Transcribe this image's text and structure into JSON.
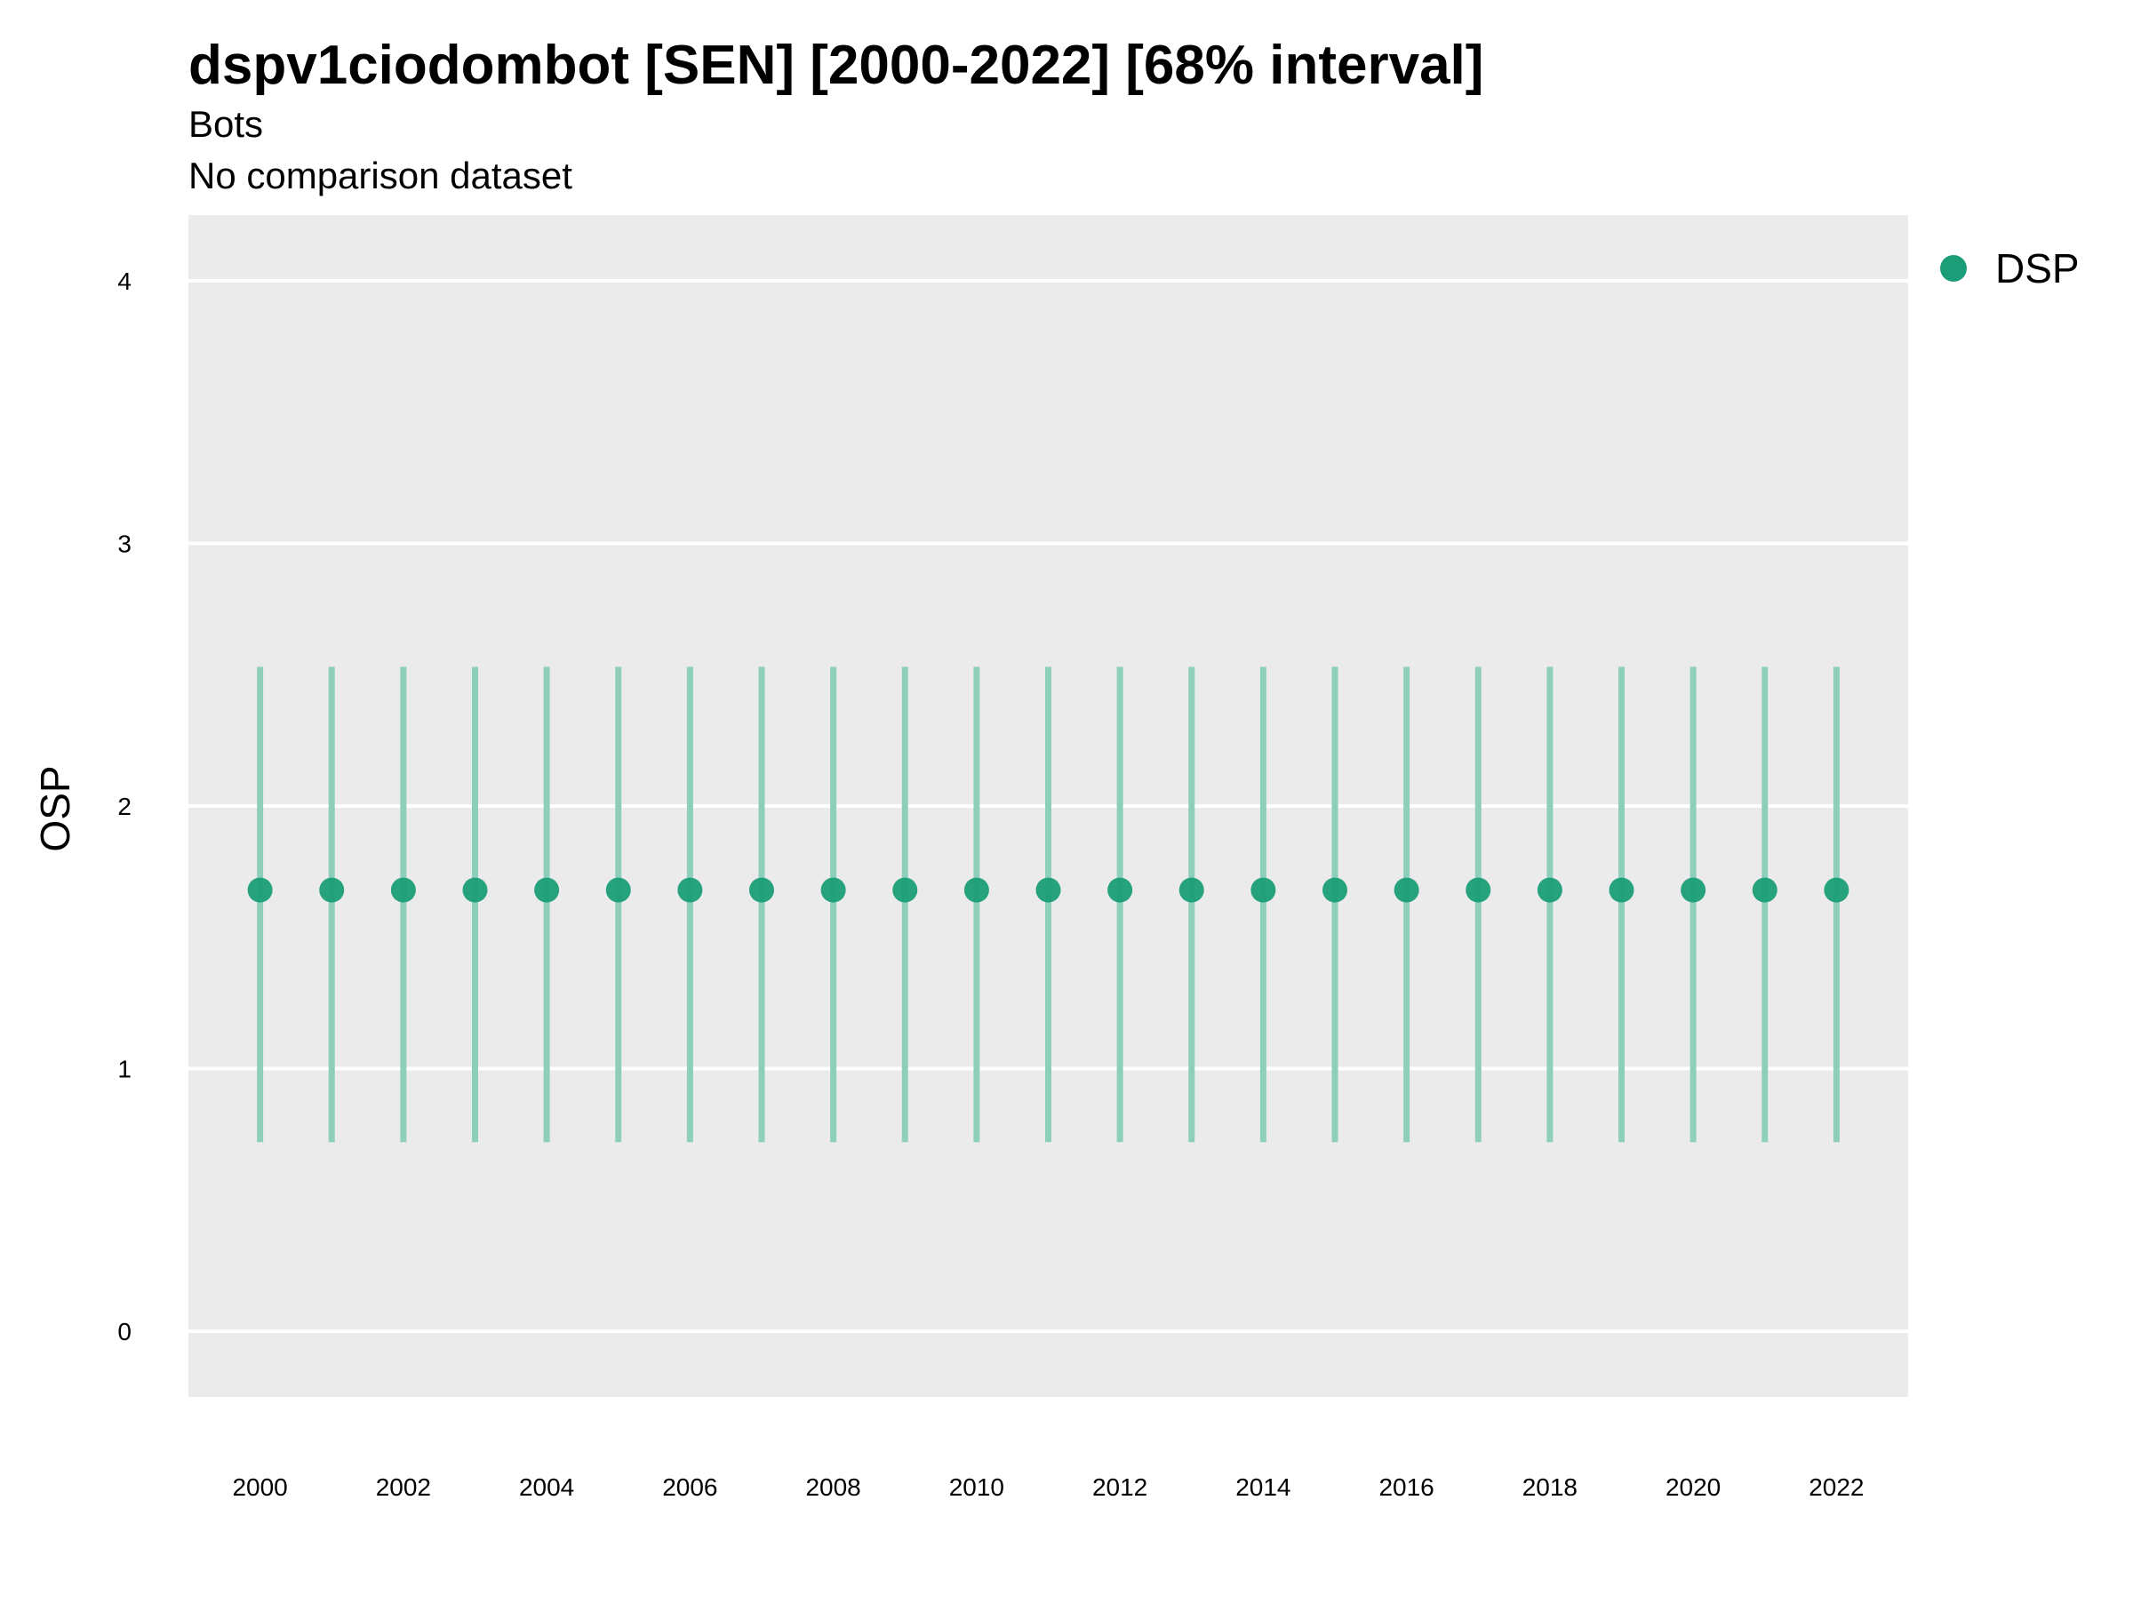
{
  "chart_data": {
    "type": "scatter",
    "title": "dspv1ciodombot [SEN] [2000-2022] [68% interval]",
    "subtitle": "Bots",
    "subtitle2": "No comparison dataset",
    "ylabel": "OSP",
    "xlabel": "",
    "ylim": [
      -0.25,
      4.25
    ],
    "yticks": [
      0,
      1,
      2,
      3,
      4
    ],
    "xlim": [
      1999,
      2023
    ],
    "xticks": [
      2000,
      2002,
      2004,
      2006,
      2008,
      2010,
      2012,
      2014,
      2016,
      2018,
      2020,
      2022
    ],
    "grid": true,
    "legend_position": "top-right",
    "series": [
      {
        "name": "DSP",
        "color": "#1b9e77",
        "points": [
          {
            "x": 2000,
            "y": 1.68,
            "lower": 0.72,
            "upper": 2.53
          },
          {
            "x": 2001,
            "y": 1.68,
            "lower": 0.72,
            "upper": 2.53
          },
          {
            "x": 2002,
            "y": 1.68,
            "lower": 0.72,
            "upper": 2.53
          },
          {
            "x": 2003,
            "y": 1.68,
            "lower": 0.72,
            "upper": 2.53
          },
          {
            "x": 2004,
            "y": 1.68,
            "lower": 0.72,
            "upper": 2.53
          },
          {
            "x": 2005,
            "y": 1.68,
            "lower": 0.72,
            "upper": 2.53
          },
          {
            "x": 2006,
            "y": 1.68,
            "lower": 0.72,
            "upper": 2.53
          },
          {
            "x": 2007,
            "y": 1.68,
            "lower": 0.72,
            "upper": 2.53
          },
          {
            "x": 2008,
            "y": 1.68,
            "lower": 0.72,
            "upper": 2.53
          },
          {
            "x": 2009,
            "y": 1.68,
            "lower": 0.72,
            "upper": 2.53
          },
          {
            "x": 2010,
            "y": 1.68,
            "lower": 0.72,
            "upper": 2.53
          },
          {
            "x": 2011,
            "y": 1.68,
            "lower": 0.72,
            "upper": 2.53
          },
          {
            "x": 2012,
            "y": 1.68,
            "lower": 0.72,
            "upper": 2.53
          },
          {
            "x": 2013,
            "y": 1.68,
            "lower": 0.72,
            "upper": 2.53
          },
          {
            "x": 2014,
            "y": 1.68,
            "lower": 0.72,
            "upper": 2.53
          },
          {
            "x": 2015,
            "y": 1.68,
            "lower": 0.72,
            "upper": 2.53
          },
          {
            "x": 2016,
            "y": 1.68,
            "lower": 0.72,
            "upper": 2.53
          },
          {
            "x": 2017,
            "y": 1.68,
            "lower": 0.72,
            "upper": 2.53
          },
          {
            "x": 2018,
            "y": 1.68,
            "lower": 0.72,
            "upper": 2.53
          },
          {
            "x": 2019,
            "y": 1.68,
            "lower": 0.72,
            "upper": 2.53
          },
          {
            "x": 2020,
            "y": 1.68,
            "lower": 0.72,
            "upper": 2.53
          },
          {
            "x": 2021,
            "y": 1.68,
            "lower": 0.72,
            "upper": 2.53
          },
          {
            "x": 2022,
            "y": 1.68,
            "lower": 0.72,
            "upper": 2.53
          }
        ]
      }
    ],
    "colors": {
      "panel_background": "#ebebeb",
      "gridline": "#ffffff",
      "errorbar": "#8ecfbb",
      "point": "#1b9e77"
    }
  }
}
